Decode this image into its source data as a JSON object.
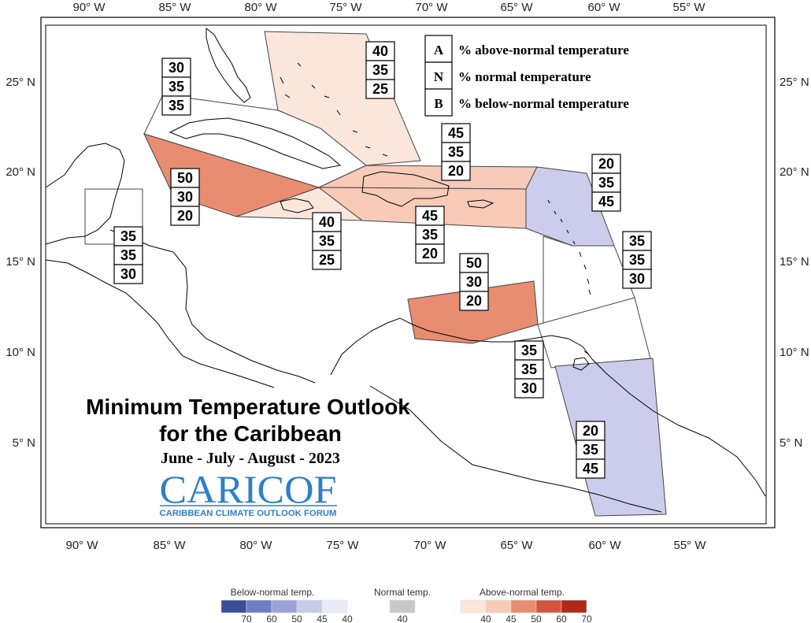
{
  "map": {
    "longitude_labels": [
      "90° W",
      "85° W",
      "80° W",
      "75° W",
      "70° W",
      "65° W",
      "60° W",
      "55° W"
    ],
    "latitude_labels": [
      "25° N",
      "20° N",
      "15° N",
      "10° N",
      "5° N"
    ]
  },
  "legend_key": [
    {
      "key": "A",
      "description": "% above-normal temperature"
    },
    {
      "key": "N",
      "description": "% normal temperature"
    },
    {
      "key": "B",
      "description": "% below-normal temperature"
    }
  ],
  "regions": [
    {
      "name": "bahamas",
      "above": "40",
      "normal": "35",
      "below": "25",
      "fill": "#fbe6dc"
    },
    {
      "name": "cuba",
      "above": "30",
      "normal": "35",
      "below": "35",
      "fill": "#ffffff"
    },
    {
      "name": "hispaniola-puerto-rico",
      "above": "45",
      "normal": "35",
      "below": "20",
      "fill": "#f8cbb8"
    },
    {
      "name": "leeward-islands",
      "above": "20",
      "normal": "35",
      "below": "45",
      "fill": "#ccccec"
    },
    {
      "name": "windward-islands",
      "above": "35",
      "normal": "35",
      "below": "30",
      "fill": "#ffffff"
    },
    {
      "name": "cayman-western-caribbean",
      "above": "50",
      "normal": "30",
      "below": "20",
      "fill": "#e88d72"
    },
    {
      "name": "jamaica",
      "above": "40",
      "normal": "35",
      "below": "25",
      "fill": "#fbe6dc"
    },
    {
      "name": "south-hispaniola-sea",
      "above": "45",
      "normal": "35",
      "below": "20",
      "fill": "#f8cbb8"
    },
    {
      "name": "belize",
      "above": "35",
      "normal": "35",
      "below": "30",
      "fill": "#ffffff"
    },
    {
      "name": "abc-islands",
      "above": "50",
      "normal": "30",
      "below": "20",
      "fill": "#e88d72"
    },
    {
      "name": "trinidad-tobago",
      "above": "35",
      "normal": "35",
      "below": "30",
      "fill": "#ffffff"
    },
    {
      "name": "guianas",
      "above": "20",
      "normal": "35",
      "below": "45",
      "fill": "#ccccec"
    }
  ],
  "title": {
    "line1": "Minimum Temperature Outlook",
    "line2": "for the Caribbean",
    "period": "June - July - August - 2023"
  },
  "logo": {
    "main": "CARICOF",
    "sub": "CARIBBEAN CLIMATE OUTLOOK FORUM"
  },
  "colorbar": {
    "below": {
      "title": "Below-normal temp.",
      "ticks": [
        "70",
        "60",
        "50",
        "45",
        "40"
      ],
      "colors": [
        "#3a4f9a",
        "#6f7ec2",
        "#9aa3d8",
        "#c6cbea",
        "#e9ebf7"
      ]
    },
    "normal": {
      "title": "Normal temp.",
      "ticks": [
        "40"
      ],
      "colors": [
        "#c8c8c8"
      ]
    },
    "above": {
      "title": "Above-normal temp.",
      "ticks": [
        "40",
        "45",
        "50",
        "60",
        "70"
      ],
      "colors": [
        "#fbe6dc",
        "#f8cbb8",
        "#e88d72",
        "#d6543f",
        "#b02a1a"
      ]
    }
  }
}
